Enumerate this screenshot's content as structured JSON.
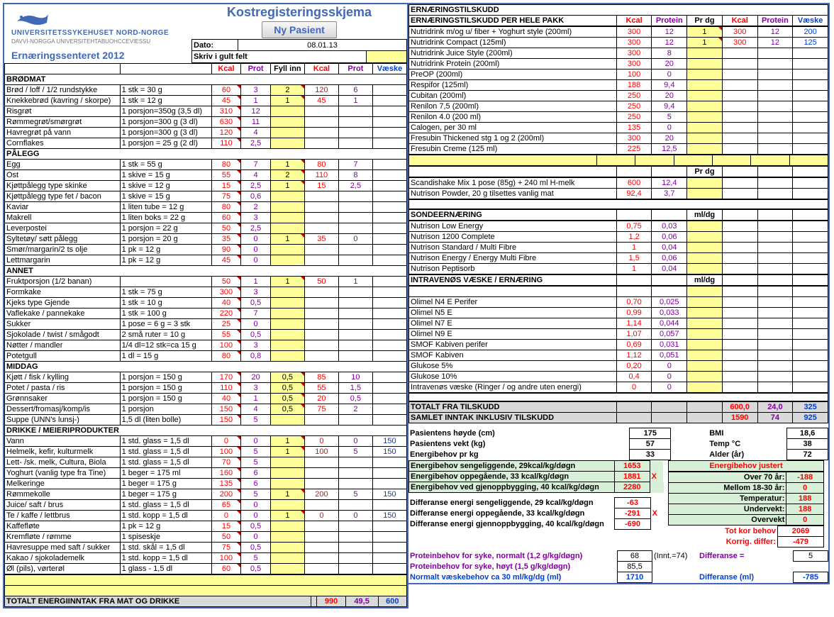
{
  "header": {
    "hospital_line1": "UNIVERSITETSSYKEHUSET NORD-NORGE",
    "hospital_line2": "DAVVI-NORGGA UNIVERSITEHTABUOHCCEVIESSU",
    "title": "Kostregisteringsskjema",
    "new_patient_btn": "Ny Pasient",
    "date_label": "Dato:",
    "date_value": "08.01.13",
    "yellow_instruction": "Skriv i gult felt",
    "center_name": "Ernæringssenteret 2012"
  },
  "col_headers": {
    "kcal": "Kcal",
    "prot": "Prot",
    "fyll": "Fyll inn",
    "kcal2": "Kcal",
    "prot2": "Prot",
    "vaeske": "Væske",
    "protein": "Protein",
    "prdg": "Pr dg",
    "vaeske2": "Væske",
    "mldg": "ml/dg"
  },
  "sections_left": [
    {
      "hd": "BRØDMAT",
      "rows": [
        {
          "n": "Brød / loff / 1/2 rundstykke",
          "p": "1 stk = 30 g",
          "k": "60",
          "pr": "3",
          "f": "2",
          "k2": "120",
          "pr2": "6"
        },
        {
          "n": "Knekkebrød (kavring / skorpe)",
          "p": "1 stk = 12 g",
          "k": "45",
          "pr": "1",
          "f": "1",
          "k2": "45",
          "pr2": "1"
        },
        {
          "n": "Risgrøt",
          "p": "1 porsjon=350g (3,5 dl)",
          "k": "310",
          "pr": "12"
        },
        {
          "n": "Rømmegrøt/smørgrøt",
          "p": "1 porsjon=300 g (3 dl)",
          "k": "630",
          "pr": "11"
        },
        {
          "n": "Havregrøt på vann",
          "p": "1 porsjon=300 g (3 dl)",
          "k": "120",
          "pr": "4"
        },
        {
          "n": "Cornflakes",
          "p": "1 porsjon = 25 g (2 dl)",
          "k": "110",
          "pr": "2,5"
        }
      ]
    },
    {
      "hd": "PÅLEGG",
      "rows": [
        {
          "n": "Egg",
          "p": "1 stk = 55 g",
          "k": "80",
          "pr": "7",
          "f": "1",
          "k2": "80",
          "pr2": "7"
        },
        {
          "n": "Ost",
          "p": "1 skive = 15 g",
          "k": "55",
          "pr": "4",
          "f": "2",
          "k2": "110",
          "pr2": "8"
        },
        {
          "n": "Kjøttpålegg type skinke",
          "p": "1 skive = 12 g",
          "k": "15",
          "pr": "2,5",
          "f": "1",
          "k2": "15",
          "pr2": "2,5"
        },
        {
          "n": "Kjøttpålegg type fet / bacon",
          "p": "1 skive = 15 g",
          "k": "75",
          "pr": "0,6"
        },
        {
          "n": "Kaviar",
          "p": "1 liten tube = 12 g",
          "k": "80",
          "pr": "2"
        },
        {
          "n": "Makrell",
          "p": "1 liten boks = 22 g",
          "k": "60",
          "pr": "3"
        },
        {
          "n": "Leverpostei",
          "p": "1 porsjon = 22 g",
          "k": "50",
          "pr": "2,5"
        },
        {
          "n": "Syltetøy/ søtt pålegg",
          "p": "1 porsjon = 20 g",
          "k": "35",
          "pr": "0",
          "f": "1",
          "k2": "35",
          "pr2": "0"
        },
        {
          "n": "Smør/margarin/2 ts olje",
          "p": "1 pk = 12 g",
          "k": "90",
          "pr": "0"
        },
        {
          "n": "Lettmargarin",
          "p": "1 pk = 12 g",
          "k": "45",
          "pr": "0"
        }
      ]
    },
    {
      "hd": "ANNET",
      "rows": [
        {
          "n": "Fruktporsjon (1/2 banan)",
          "p": "",
          "k": "50",
          "pr": "1",
          "f": "1",
          "k2": "50",
          "pr2": "1"
        },
        {
          "n": "Formkake",
          "p": "1 stk = 75 g",
          "k": "300",
          "pr": "3"
        },
        {
          "n": "Kjeks type Gjende",
          "p": "1 stk = 10 g",
          "k": "40",
          "pr": "0,5"
        },
        {
          "n": "Vaflekake / pannekake",
          "p": "1 stk = 100 g",
          "k": "220",
          "pr": "7"
        },
        {
          "n": "Sukker",
          "p": "1 pose = 6 g = 3 stk",
          "k": "25",
          "pr": "0"
        },
        {
          "n": "Sjokolade / twist / smågodt",
          "p": "2 små ruter = 10 g",
          "k": "55",
          "pr": "0,5"
        },
        {
          "n": "Nøtter / mandler",
          "p": "1/4 dl=12 stk=ca 15 g",
          "k": "100",
          "pr": "3"
        },
        {
          "n": "Potetgull",
          "p": "1 dl = 15 g",
          "k": "80",
          "pr": "0,8"
        }
      ]
    },
    {
      "hd": "MIDDAG",
      "rows": [
        {
          "n": "Kjøtt / fisk / kylling",
          "p": "1 porsjon = 150 g",
          "k": "170",
          "pr": "20",
          "f": "0,5",
          "k2": "85",
          "pr2": "10"
        },
        {
          "n": "Potet / pasta / ris",
          "p": "1 porsjon = 150 g",
          "k": "110",
          "pr": "3",
          "f": "0,5",
          "k2": "55",
          "pr2": "1,5"
        },
        {
          "n": "Grønnsaker",
          "p": "1 porsjon = 150 g",
          "k": "40",
          "pr": "1",
          "f": "0,5",
          "k2": "20",
          "pr2": "0,5"
        },
        {
          "n": "Dessert/fromasj/komp/is",
          "p": "1 porsjon",
          "k": "150",
          "pr": "4",
          "f": "0,5",
          "k2": "75",
          "pr2": "2"
        },
        {
          "n": "Suppe (UNN's lunsj-)",
          "p": "1,5 dl (liten bolle)",
          "k": "150",
          "pr": "5"
        }
      ]
    },
    {
      "hd": "DRIKKE / MEIERIPRODUKTER",
      "rows": [
        {
          "n": "Vann",
          "p": "1 std. glass = 1,5 dl",
          "k": "0",
          "pr": "0",
          "f": "1",
          "k2": "0",
          "pr2": "0",
          "v": "150"
        },
        {
          "n": "Helmelk, kefir, kulturmelk",
          "p": "1 std. glass = 1,5 dl",
          "k": "100",
          "pr": "5",
          "f": "1",
          "k2": "100",
          "pr2": "5",
          "v": "150"
        },
        {
          "n": "Lett- /sk. melk, Cultura, Biola",
          "p": "1 std. glass = 1,5 dl",
          "k": "70",
          "pr": "5"
        },
        {
          "n": "Yoghurt (vanlig type fra Tine)",
          "p": "1 beger = 175 ml",
          "k": "160",
          "pr": "6"
        },
        {
          "n": "Melkeringe",
          "p": "1 beger = 175 g",
          "k": "135",
          "pr": "6"
        },
        {
          "n": "Rømmekolle",
          "p": "1 beger = 175 g",
          "k": "200",
          "pr": "5",
          "f": "1",
          "k2": "200",
          "pr2": "5",
          "v": "150"
        },
        {
          "n": "Juice/ saft / brus",
          "p": "1 std. glass = 1,5 dl",
          "k": "65",
          "pr": "0"
        },
        {
          "n": "Te / kaffe / lettbrus",
          "p": "1 std. kopp = 1,5 dl",
          "k": "0",
          "pr": "0",
          "f": "1",
          "k2": "0",
          "pr2": "0",
          "v": "150"
        },
        {
          "n": "Kaffefløte",
          "p": "1 pk = 12 g",
          "k": "15",
          "pr": "0,5"
        },
        {
          "n": "Kremfløte / rømme",
          "p": "1 spiseskje",
          "k": "50",
          "pr": "0"
        },
        {
          "n": "Havresuppe med saft / sukker",
          "p": "1 std. skål = 1,5 dl",
          "k": "75",
          "pr": "0,5"
        },
        {
          "n": "Kakao / sjokolademelk",
          "p": "1 std. kopp = 1,5 dl",
          "k": "100",
          "pr": "5"
        },
        {
          "n": "Øl (pils), vørterøl",
          "p": "1 glass - 1,5 dl",
          "k": "60",
          "pr": "0,5"
        }
      ]
    }
  ],
  "left_total_label": "TOTALT ENERGIINNTAK FRA MAT OG DRIKKE",
  "left_total": {
    "kcal": "990",
    "prot": "49,5",
    "v": "600"
  },
  "right_header1": "ERNÆRINGSTILSKUDD",
  "right_header2": "ERNÆRINGSTILSKUDD PER HELE PAKK",
  "supp": [
    {
      "n": "Nutridrink m/og u/ fiber + Yoghurt style (200ml)",
      "k": "300",
      "pr": "12",
      "f": "1",
      "k2": "300",
      "pr2": "12",
      "v": "200"
    },
    {
      "n": "Nutridrink Compact (125ml)",
      "k": "300",
      "pr": "12",
      "f": "1",
      "k2": "300",
      "pr2": "12",
      "v": "125"
    },
    {
      "n": "Nutridrink Juice Style (200ml)",
      "k": "300",
      "pr": "8"
    },
    {
      "n": "Nutridrink Protein (200ml)",
      "k": "300",
      "pr": "20"
    },
    {
      "n": "PreOP (200ml)",
      "k": "100",
      "pr": "0"
    },
    {
      "n": "Respifor (125ml)",
      "k": "188",
      "pr": "9,4"
    },
    {
      "n": "Cubitan (200ml)",
      "k": "250",
      "pr": "20"
    },
    {
      "n": "Renilon 7,5 (200ml)",
      "k": "250",
      "pr": "9,4"
    },
    {
      "n": "Renilon 4.0 (200 ml)",
      "k": "250",
      "pr": "5"
    },
    {
      "n": "Calogen, per 30 ml",
      "k": "135",
      "pr": "0"
    },
    {
      "n": "Fresubin Thickened stg 1 og 2 (200ml)",
      "k": "300",
      "pr": "20"
    },
    {
      "n": "Fresubin Creme (125 ml)",
      "k": "225",
      "pr": "12,5"
    }
  ],
  "prdg_rows": [
    {
      "n": "Scandishake Mix 1 pose (85g) + 240 ml H-melk",
      "k": "600",
      "pr": "12,4"
    },
    {
      "n": "Nutrison Powder, 20 g tilsettes vanlig mat",
      "k": "92,4",
      "pr": "3,7"
    }
  ],
  "sonde_hd": "SONDEERNÆRING",
  "sonde": [
    {
      "n": "Nutrison Low Energy",
      "k": "0,75",
      "pr": "0,03"
    },
    {
      "n": "Nutrison 1200 Complete",
      "k": "1,2",
      "pr": "0,06"
    },
    {
      "n": "Nutrison Standard / Multi Fibre",
      "k": "1",
      "pr": "0,04"
    },
    {
      "n": "Nutrison Energy / Energy Multi Fibre",
      "k": "1,5",
      "pr": "0,06"
    },
    {
      "n": "Nutrison Peptisorb",
      "k": "1",
      "pr": "0,04"
    }
  ],
  "iv_hd": "INTRAVENØS VÆSKE / ERNÆRING",
  "iv": [
    {
      "n": ""
    },
    {
      "n": "Olimel N4 E Perifer",
      "k": "0,70",
      "pr": "0,025"
    },
    {
      "n": "Olimel N5 E",
      "k": "0,99",
      "pr": "0,033"
    },
    {
      "n": "Olimel N7 E",
      "k": "1,14",
      "pr": "0,044"
    },
    {
      "n": "Olimel N9 E",
      "k": "1,07",
      "pr": "0,057"
    },
    {
      "n": "SMOF Kabiven perifer",
      "k": "0,69",
      "pr": "0,031"
    },
    {
      "n": "SMOF Kabiven",
      "k": "1,12",
      "pr": "0,051"
    },
    {
      "n": "Glukose 5%",
      "k": "0,20",
      "pr": "0"
    },
    {
      "n": "Glukose 10%",
      "k": "0,4",
      "pr": "0"
    },
    {
      "n": "Intravenøs væske (Ringer / og andre uten energi)",
      "k": "0",
      "pr": "0"
    }
  ],
  "right_tot1": {
    "label": "TOTALT  FRA  TILSKUDD",
    "k": "600,0",
    "pr": "24,0",
    "v": "325"
  },
  "right_tot2": {
    "label": "SAMLET INNTAK INKLUSIV TILSKUDD",
    "k": "1590",
    "pr": "74",
    "v": "925"
  },
  "patient": {
    "h_label": "Pasientens høyde  (cm)",
    "h": "175",
    "w_label": "Pasientens vekt  (kg)",
    "w": "57",
    "e_label": "Energibehov pr kg",
    "e": "33",
    "bmi_l": "BMI",
    "bmi": "18,6",
    "temp_l": "Temp °C",
    "temp": "38",
    "age_l": "Alder (år)",
    "age": "72"
  },
  "green": [
    {
      "l": "Energibehov sengeliggende, 29kcal/kg/døgn",
      "v": "1653"
    },
    {
      "l": "Energibehov oppegående, 33 kcal/kg/døgn",
      "v": "1881",
      "x": "X"
    },
    {
      "l": "Energibehov ved gjenoppbygging, 40 kcal/kg/døgn",
      "v": "2280"
    }
  ],
  "diff": [
    {
      "l": "Differanse energi sengeliggende, 29 kcal/kg/døgn",
      "v": "-63"
    },
    {
      "l": "Differanse energi oppegående, 33 kcal/kg/døgn",
      "v": "-291",
      "x": "X"
    },
    {
      "l": "Differanse energi gjennoppbygging, 40 kcal/kg/døgn",
      "v": "-690"
    }
  ],
  "adjust": {
    "title": "Energibehov justert",
    "rows": [
      {
        "l": "Over 70 år:",
        "v": "-188"
      },
      {
        "l": "Mellom 18-30 år:",
        "v": "0"
      },
      {
        "l": "Temperatur:",
        "v": "188"
      },
      {
        "l": "Undervekt:",
        "v": "188"
      },
      {
        "l": "Overvekt",
        "v": "0"
      }
    ],
    "tot_l": "Tot kor    behov",
    "tot": "2069",
    "kor_l": "Korrig.    differ:",
    "kor": "-479"
  },
  "protein": {
    "p1_l": "Proteinbehov for syke, normalt (1,2 g/kg/døgn)",
    "p1": "68",
    "innt": "(Innt.=74)",
    "diff_l": "Differanse =",
    "diff": "5",
    "p2_l": "Proteinbehov for syke, høyt (1,5 g/kg/døgn)",
    "p2": "85,5",
    "fluid_l": "Normalt væskebehov ca 30 ml/kg/dg (ml)",
    "fluid": "1710",
    "diff2_l": "Differanse (ml)",
    "diff2": "-785"
  }
}
